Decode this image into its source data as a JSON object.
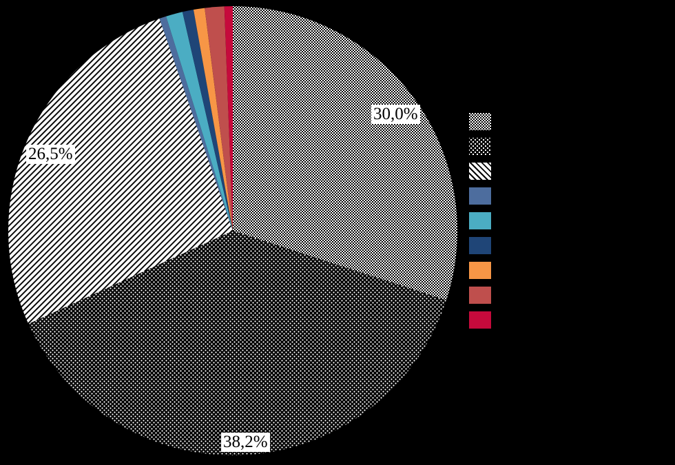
{
  "app": {
    "background_color": "#000000"
  },
  "chart_data": {
    "type": "pie",
    "title": "",
    "legend_position": "right",
    "direction": "clockwise-from-top",
    "total": 100.0,
    "decimal_separator": ",",
    "slices": [
      {
        "label": "30,0%",
        "value": 30.0,
        "fill": "pattern-checker"
      },
      {
        "label": "38,2%",
        "value": 38.2,
        "fill": "pattern-dots"
      },
      {
        "label": "26,5%",
        "value": 26.5,
        "fill": "pattern-stripes"
      },
      {
        "label": "",
        "value": 0.5,
        "fill": "#4D6D9E"
      },
      {
        "label": "",
        "value": 1.2,
        "fill": "#4BADC3"
      },
      {
        "label": "",
        "value": 0.8,
        "fill": "#1F4577"
      },
      {
        "label": "",
        "value": 0.8,
        "fill": "#F79646"
      },
      {
        "label": "",
        "value": 1.4,
        "fill": "#BF4F4D"
      },
      {
        "label": "",
        "value": 0.6,
        "fill": "#C60A3C"
      }
    ],
    "patterns": {
      "checker": {
        "style": "2px checkerboard",
        "fg": "#000000",
        "bg": "#ffffff"
      },
      "dots": {
        "style": "diagonal white dot grid",
        "fg": "#ffffff",
        "bg": "#000000"
      },
      "stripes": {
        "style": "thin diagonal lines",
        "fg": "#000000",
        "bg": "#ffffff"
      }
    },
    "data_labels": {
      "text_color": "#000000",
      "box_color": "#ffffff",
      "visible_labels": [
        "30,0%",
        "38,2%",
        "26,5%"
      ]
    },
    "legend": {
      "swatch_count": 9,
      "labels_visible": false
    }
  }
}
